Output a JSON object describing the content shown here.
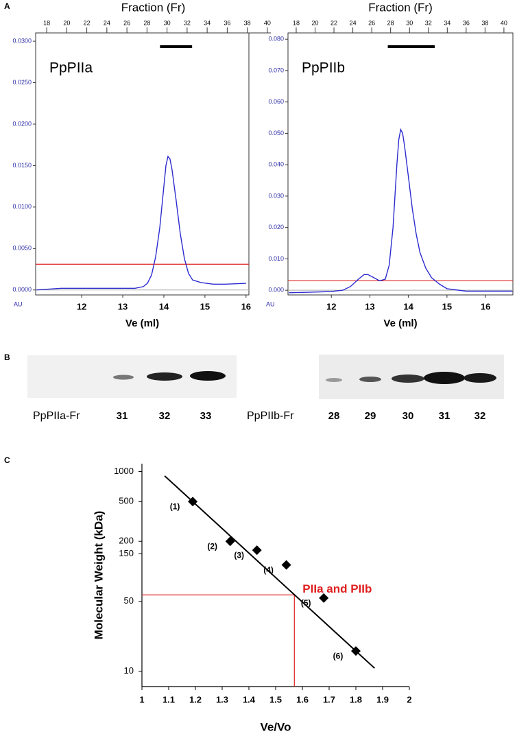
{
  "panel_labels": [
    "A",
    "B",
    "C"
  ],
  "blots": {
    "left": {
      "label": "PpPIIa-Fr",
      "lanes": [
        "31",
        "32",
        "33"
      ]
    },
    "right": {
      "label": "PpPIIb-Fr",
      "lanes": [
        "28",
        "29",
        "30",
        "31",
        "32"
      ]
    }
  },
  "chart_data": [
    {
      "type": "line",
      "title": "Fraction (Fr)",
      "annotation": "PpPIIa",
      "x_label": "Ve (ml)",
      "y_label": "AU",
      "x": [
        10.9,
        11.5,
        12.0,
        12.5,
        13.0,
        13.3,
        13.5,
        13.6,
        13.7,
        13.8,
        13.9,
        14.0,
        14.05,
        14.1,
        14.15,
        14.2,
        14.3,
        14.4,
        14.5,
        14.6,
        14.7,
        14.9,
        15.2,
        15.5,
        16.0
      ],
      "series": [
        {
          "color": "#2b2bd0",
          "values": [
            0.0,
            0.0002,
            0.0002,
            0.0002,
            0.0002,
            0.0002,
            0.0004,
            0.0008,
            0.0018,
            0.004,
            0.0075,
            0.0125,
            0.015,
            0.0161,
            0.0158,
            0.0145,
            0.0108,
            0.0068,
            0.0038,
            0.002,
            0.0012,
            0.0009,
            0.0007,
            0.0007,
            0.0008
          ]
        }
      ],
      "xlim": [
        10.88,
        16.07
      ],
      "xticks": [
        12,
        13,
        14,
        15,
        16
      ],
      "ylim": [
        -0.0006,
        0.031
      ],
      "yticks": [
        {
          "value": 0,
          "label": "0.0000"
        },
        {
          "value": 0.005,
          "label": "0.0050"
        },
        {
          "value": 0.01,
          "label": "0.0100"
        },
        {
          "value": 0.015,
          "label": "0.0150"
        },
        {
          "value": 0.02,
          "label": "0.0200"
        },
        {
          "value": 0.025,
          "label": "0.0250"
        },
        {
          "value": 0.03,
          "label": "0.0300"
        }
      ],
      "x2lim": [
        16.9,
        40.35
      ],
      "x2ticks": [
        18,
        20,
        22,
        24,
        26,
        28,
        30,
        32,
        34,
        36,
        38,
        40
      ],
      "fraction_bar": [
        29.3,
        32.5
      ],
      "threshold": {
        "value": 0.0031,
        "color": "#e02020"
      },
      "zero_line": true
    },
    {
      "type": "line",
      "title": "Fraction (Fr)",
      "annotation": "PpPIIb",
      "x_label": "Ve (ml)",
      "y_label": "AU",
      "x": [
        10.9,
        11.5,
        12.0,
        12.3,
        12.5,
        12.7,
        12.85,
        12.95,
        13.1,
        13.25,
        13.4,
        13.5,
        13.6,
        13.7,
        13.75,
        13.8,
        13.85,
        13.9,
        14.0,
        14.1,
        14.2,
        14.3,
        14.45,
        14.6,
        14.8,
        15.0,
        15.5,
        16.0,
        16.7
      ],
      "series": [
        {
          "color": "#2b2bd0",
          "values": [
            -0.0008,
            -0.0006,
            -0.0004,
            0.0,
            0.0012,
            0.0035,
            0.005,
            0.005,
            0.004,
            0.003,
            0.0035,
            0.008,
            0.02,
            0.04,
            0.048,
            0.0512,
            0.05,
            0.046,
            0.036,
            0.026,
            0.018,
            0.012,
            0.007,
            0.004,
            0.002,
            0.0005,
            -0.0003,
            -0.0003,
            -0.0003
          ]
        }
      ],
      "xlim": [
        10.875,
        16.71
      ],
      "xticks": [
        12,
        13,
        14,
        15,
        16
      ],
      "ylim": [
        -0.0015,
        0.082
      ],
      "yticks": [
        {
          "value": 0,
          "label": "0.000"
        },
        {
          "value": 0.01,
          "label": "0.010"
        },
        {
          "value": 0.02,
          "label": "0.020"
        },
        {
          "value": 0.03,
          "label": "0.030"
        },
        {
          "value": 0.04,
          "label": "0.040"
        },
        {
          "value": 0.05,
          "label": "0.050"
        },
        {
          "value": 0.06,
          "label": "0.060"
        },
        {
          "value": 0.07,
          "label": "0.070"
        },
        {
          "value": 0.08,
          "label": "0.080"
        }
      ],
      "x2lim": [
        17.13,
        40.95
      ],
      "x2ticks": [
        18,
        20,
        22,
        24,
        26,
        28,
        30,
        32,
        34,
        36,
        38,
        40
      ],
      "fraction_bar": [
        27.7,
        32.67
      ],
      "threshold": {
        "value": 0.003,
        "color": "#e02020"
      },
      "zero_line": true
    },
    {
      "type": "scatter",
      "y_scale": "log",
      "x_label": "Ve/Vo",
      "y_label": "Molecular Weight (kDa)",
      "x": [
        1.19,
        1.33,
        1.43,
        1.54,
        1.68,
        1.8
      ],
      "series": [
        {
          "color": "#000000",
          "values": [
            500,
            200,
            163,
            116,
            54,
            15.9
          ],
          "point_labels": [
            "(1)",
            "(2)",
            "(3)",
            "(4)",
            "(5)",
            "(6)"
          ]
        }
      ],
      "fit_line": {
        "x": [
          1.085,
          1.87
        ],
        "values": [
          905,
          10.7
        ],
        "color": "#000000"
      },
      "xlim": [
        1,
        2
      ],
      "xticks": [
        1,
        1.1,
        1.2,
        1.3,
        1.4,
        1.5,
        1.6,
        1.7,
        1.8,
        1.9,
        2
      ],
      "ylim": [
        7,
        1200
      ],
      "yticks": [
        1000,
        500,
        200,
        150,
        50,
        10
      ],
      "annotation": {
        "text": "PIIa and PIIb",
        "x": 1.57,
        "y": 58,
        "color": "#e02020"
      }
    }
  ]
}
